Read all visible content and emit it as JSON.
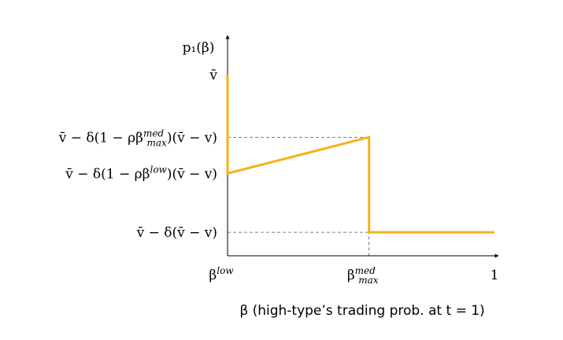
{
  "chart_data": {
    "type": "line",
    "title": "",
    "ylabel": "p₁(β)",
    "xlabel": "β (high-type’s trading prob. at t = 1)",
    "xlim": [
      0,
      1
    ],
    "ylim": [
      0,
      1
    ],
    "x_ticks": [
      {
        "value": 0.0,
        "label": "β",
        "sup": "low"
      },
      {
        "value": 0.53,
        "label": "β",
        "sup": "med",
        "sub": "max"
      },
      {
        "value": 1.0,
        "label": "1"
      }
    ],
    "y_ticks": [
      {
        "value": 1.0,
        "label": "v̄"
      },
      {
        "value": 0.655,
        "label": "v̄ − δ(1 − ρβ",
        "sup": "med",
        "sub": "max",
        "tail": ")(v̄ − v)"
      },
      {
        "value": 0.455,
        "label": "v̄ − δ(1 − ρβ",
        "sup": "low",
        "tail": ")(v̄ − v)"
      },
      {
        "value": 0.13,
        "label": "v̄ − δ(v̄ − v)"
      }
    ],
    "series": [
      {
        "color": "#f5b21b",
        "points": [
          [
            0,
            1.0
          ],
          [
            0,
            0.455
          ],
          [
            0.53,
            0.655
          ],
          [
            0.53,
            0.13
          ],
          [
            1.0,
            0.13
          ]
        ]
      }
    ],
    "guides": [
      {
        "from": [
          0,
          0.655
        ],
        "to": [
          0.53,
          0.655
        ]
      },
      {
        "from": [
          0.53,
          0.655
        ],
        "to": [
          0.53,
          0
        ]
      },
      {
        "from": [
          0,
          0.13
        ],
        "to": [
          0.53,
          0.13
        ]
      }
    ],
    "grid": false,
    "legend": "none"
  }
}
